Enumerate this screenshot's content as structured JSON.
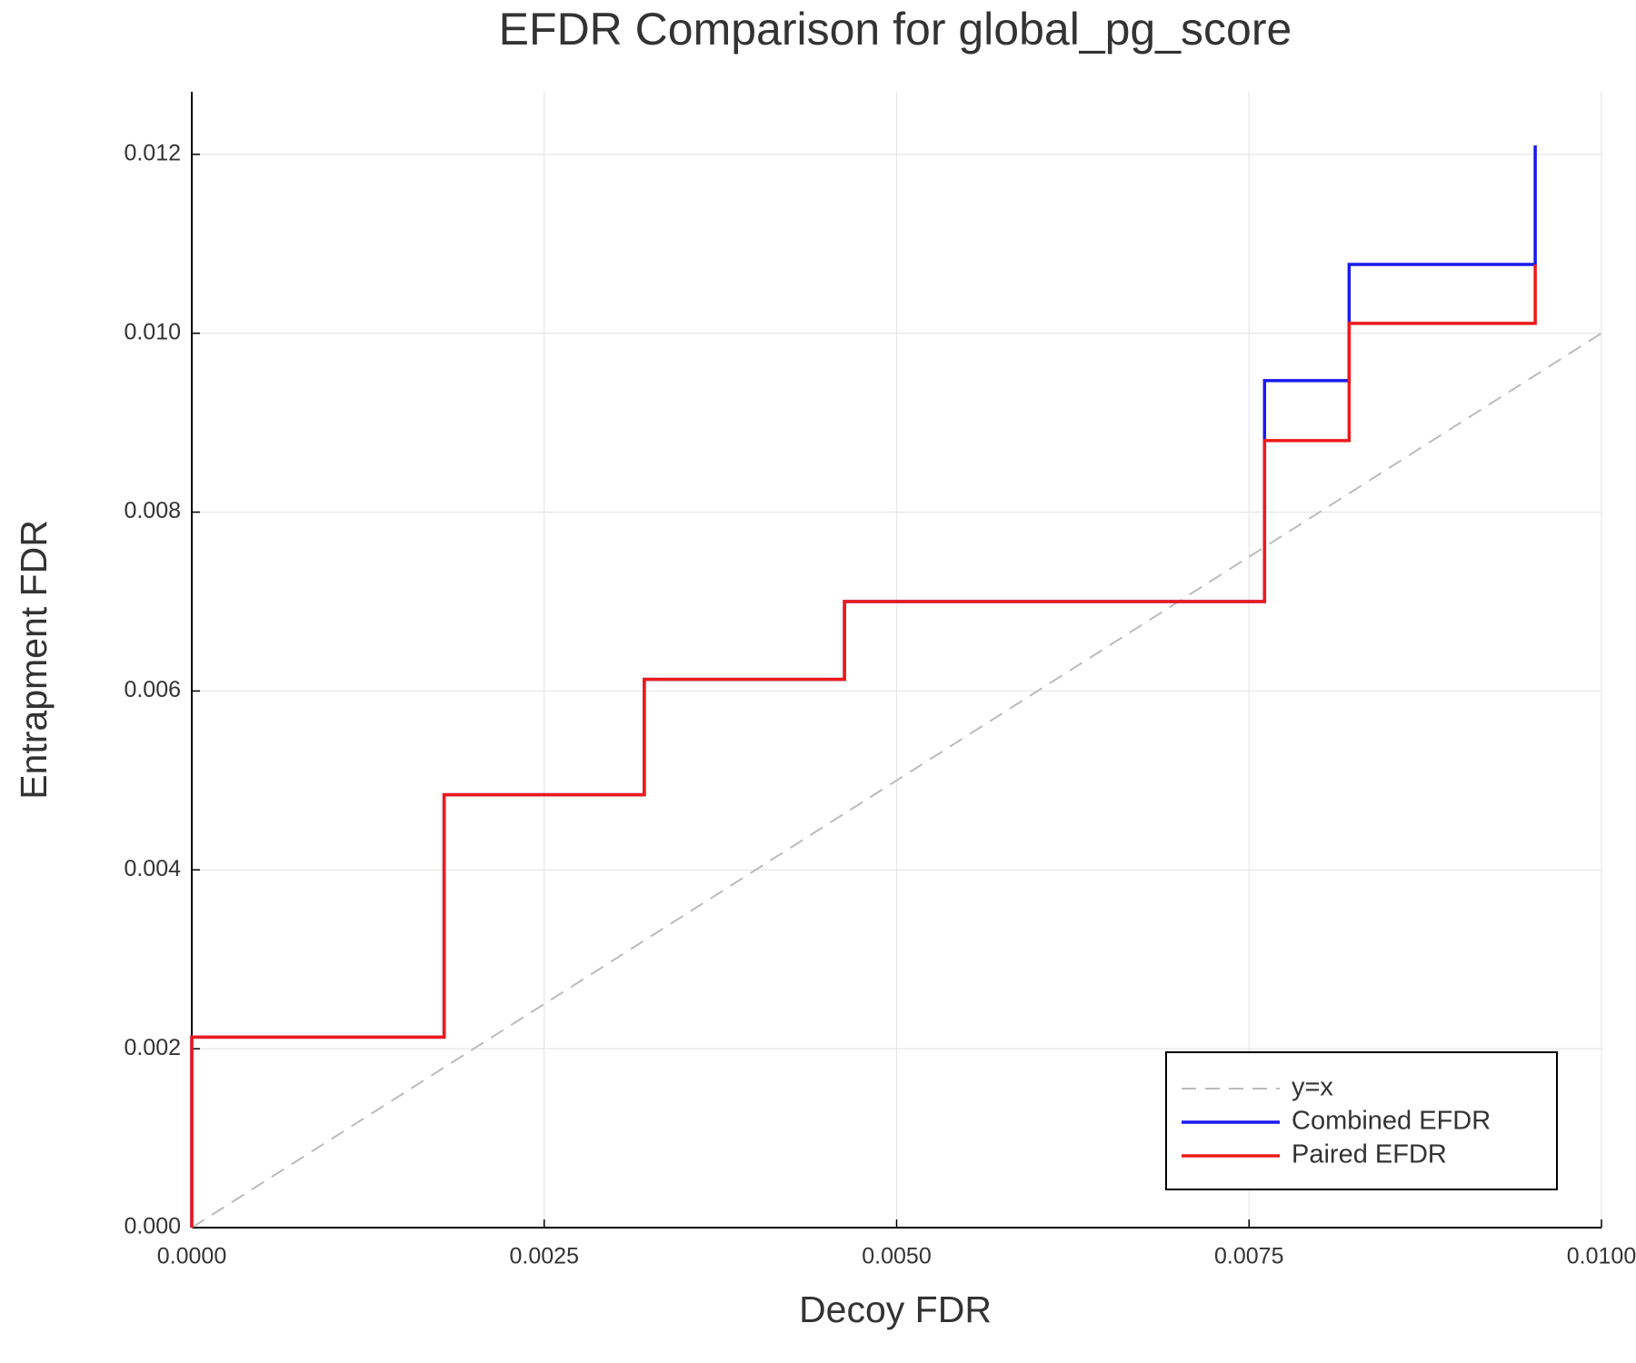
{
  "chart_data": {
    "type": "line",
    "title": "EFDR Comparison for global_pg_score",
    "xlabel": "Decoy FDR",
    "ylabel": "Entrapment FDR",
    "xlim": [
      0,
      0.01
    ],
    "ylim": [
      0,
      0.0127
    ],
    "xticks": [
      {
        "value": 0,
        "label": "0.0000"
      },
      {
        "value": 0.0025,
        "label": "0.0025"
      },
      {
        "value": 0.005,
        "label": "0.0050"
      },
      {
        "value": 0.0075,
        "label": "0.0075"
      },
      {
        "value": 0.01,
        "label": "0.0100"
      }
    ],
    "yticks": [
      {
        "value": 0,
        "label": "0.000"
      },
      {
        "value": 0.002,
        "label": "0.002"
      },
      {
        "value": 0.004,
        "label": "0.004"
      },
      {
        "value": 0.006,
        "label": "0.006"
      },
      {
        "value": 0.008,
        "label": "0.008"
      },
      {
        "value": 0.01,
        "label": "0.010"
      },
      {
        "value": 0.012,
        "label": "0.012"
      }
    ],
    "grid": true,
    "legend": "bottom-right",
    "series": [
      {
        "name": "y=x",
        "color": "#bbbbbb",
        "dash": true,
        "drawstyle": "default",
        "x": [
          0,
          0.01
        ],
        "values": [
          0,
          0.01
        ]
      },
      {
        "name": "Combined EFDR",
        "color": "#1a1aee",
        "dash": false,
        "drawstyle": "steps-post",
        "x": [
          0,
          0,
          0.00179,
          0.00321,
          0.00463,
          0.00761,
          0.00821,
          0.00953
        ],
        "values": [
          0,
          0.00213,
          0.00484,
          0.00613,
          0.007,
          0.00947,
          0.01077,
          0.0121
        ]
      },
      {
        "name": "Paired EFDR",
        "color": "#ee1a1a",
        "dash": false,
        "drawstyle": "steps-post",
        "x": [
          0,
          0,
          0.00179,
          0.00321,
          0.00463,
          0.00761,
          0.00821,
          0.00953
        ],
        "values": [
          0,
          0.00213,
          0.00484,
          0.00613,
          0.007,
          0.0088,
          0.01011,
          0.01077
        ]
      }
    ]
  }
}
